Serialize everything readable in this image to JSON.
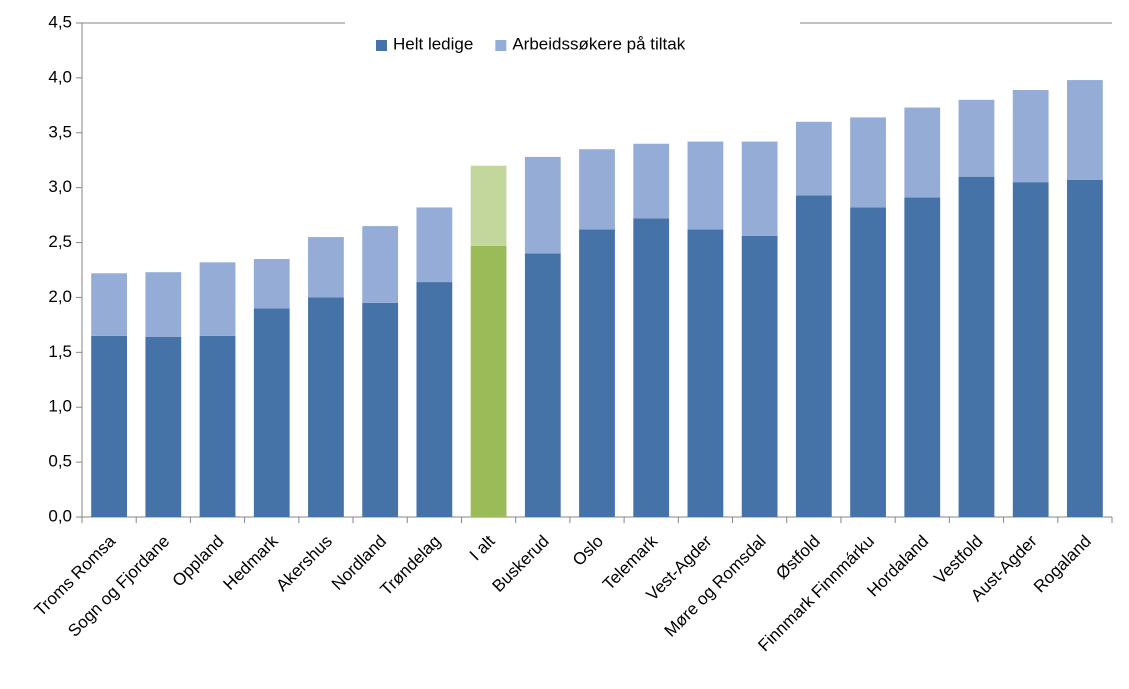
{
  "chart_data": {
    "type": "stacked_bar",
    "categories": [
      "Troms Romsa",
      "Sogn og Fjordane",
      "Oppland",
      "Hedmark",
      "Akershus",
      "Nordland",
      "Trøndelag",
      "I  alt",
      "Buskerud",
      "Oslo",
      "Telemark",
      "Vest-Agder",
      "Møre og Romsdal",
      "Østfold",
      "Finnmark Finnmárku",
      "Hordaland",
      "Vestfold",
      "Aust-Agder",
      "Rogaland"
    ],
    "series": [
      {
        "name": "Helt ledige",
        "color": "#4572a7",
        "highlight_color": "#9bbb59",
        "values": [
          1.65,
          1.64,
          1.65,
          1.9,
          2.0,
          1.95,
          2.14,
          2.47,
          2.4,
          2.62,
          2.72,
          2.62,
          2.56,
          2.93,
          2.82,
          2.91,
          3.1,
          3.05,
          3.07
        ]
      },
      {
        "name": "Arbeidssøkere på tiltak",
        "color": "#94acd6",
        "highlight_color": "#c3d69b",
        "values": [
          0.57,
          0.59,
          0.67,
          0.45,
          0.55,
          0.7,
          0.68,
          0.73,
          0.88,
          0.73,
          0.68,
          0.8,
          0.86,
          0.67,
          0.82,
          0.82,
          0.7,
          0.84,
          0.91
        ]
      }
    ],
    "highlight": "I  alt",
    "ylim": [
      0,
      4.5
    ],
    "yticks": [
      {
        "value": 0,
        "label": "0,0"
      },
      {
        "value": 0.5,
        "label": "0,5"
      },
      {
        "value": 1,
        "label": "1,0"
      },
      {
        "value": 1.5,
        "label": "1,5"
      },
      {
        "value": 2,
        "label": "2,0"
      },
      {
        "value": 2.5,
        "label": "2,5"
      },
      {
        "value": 3,
        "label": "3,0"
      },
      {
        "value": 3.5,
        "label": "3,5"
      },
      {
        "value": 4,
        "label": "4,0"
      },
      {
        "value": 4.5,
        "label": "4,5"
      }
    ],
    "legend": "top"
  }
}
